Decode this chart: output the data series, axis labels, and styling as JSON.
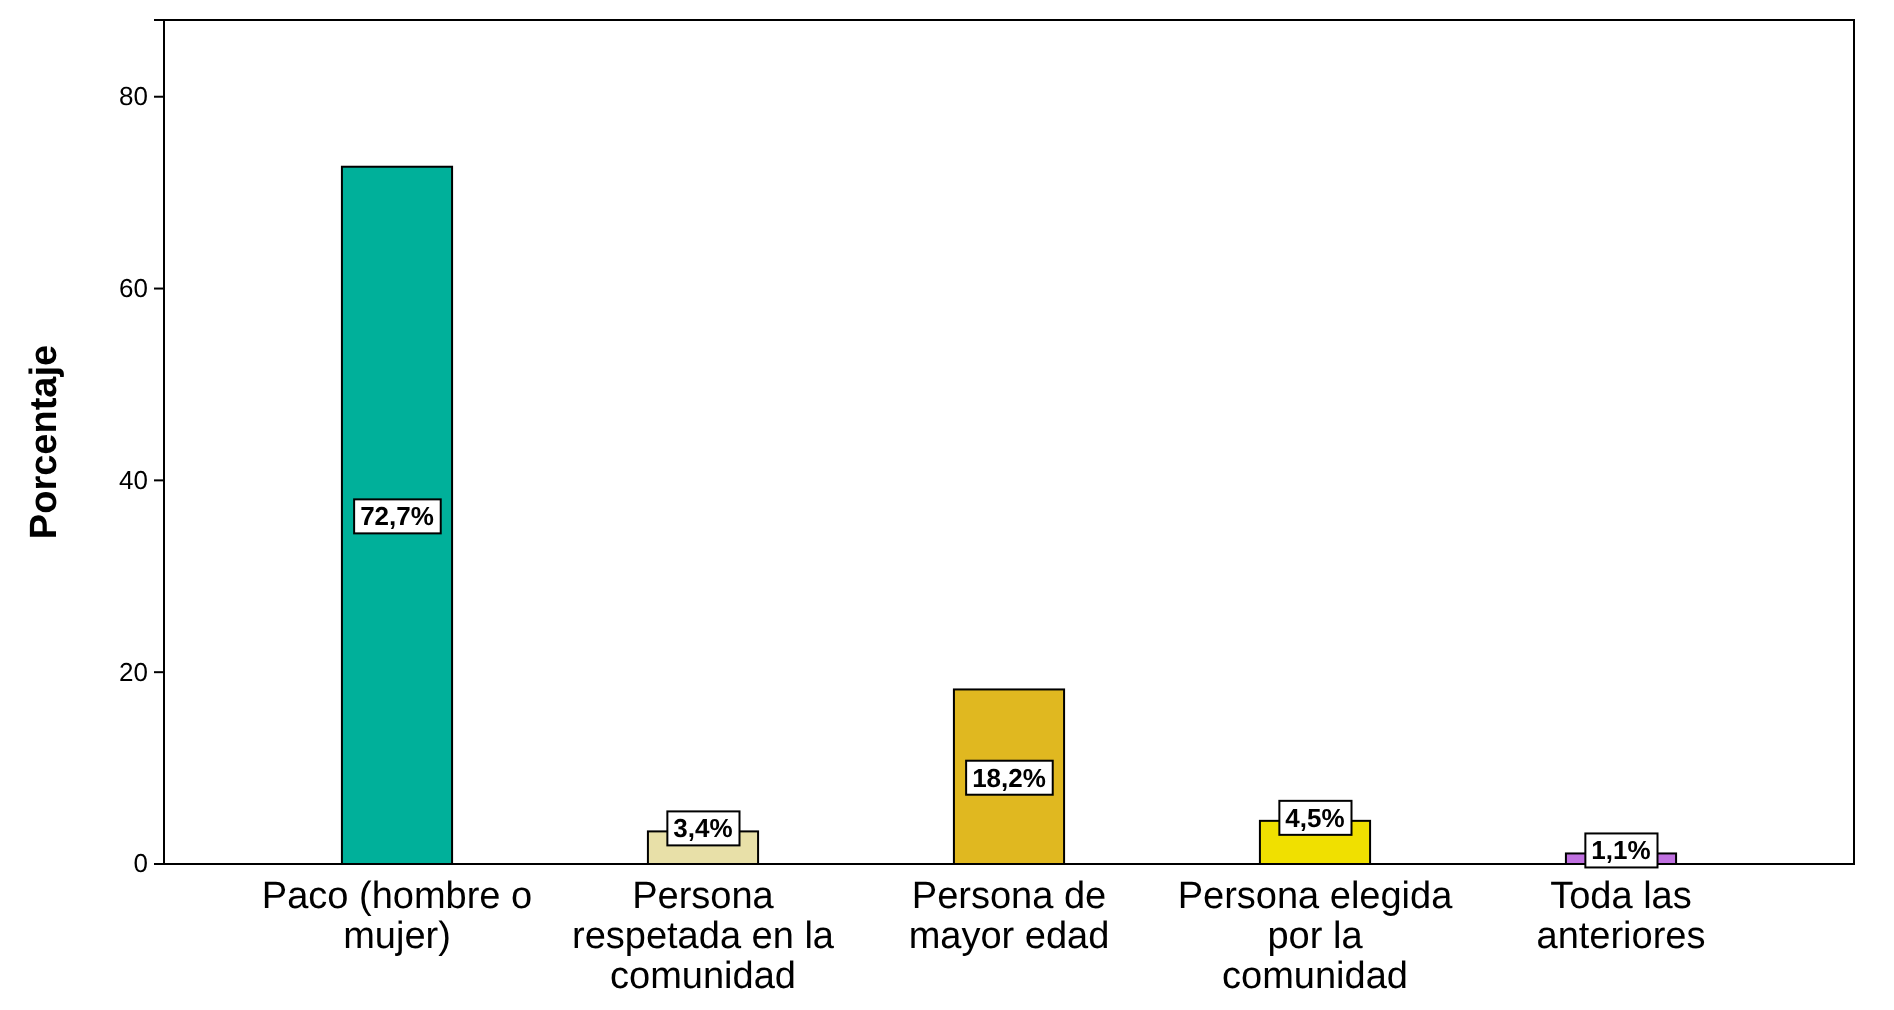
{
  "chart_data": {
    "type": "bar",
    "ylabel": "Porcentaje",
    "categories": [
      "Paco (hombre o mujer)",
      "Persona respetada en la comunidad",
      "Persona de mayor edad",
      "Persona elegida por la comunidad",
      "Toda las anteriores"
    ],
    "values": [
      72.7,
      3.4,
      18.2,
      4.5,
      1.1
    ],
    "colors": [
      "#00b09a",
      "#e8e0a8",
      "#e0b820",
      "#f0e000",
      "#c070e0"
    ],
    "value_labels": [
      "72,7%",
      "3,4%",
      "18,2%",
      "4,5%",
      "1,1%"
    ],
    "ylim": [
      0,
      88
    ],
    "yticks": [
      0,
      20,
      40,
      60,
      80
    ],
    "grid": false
  }
}
